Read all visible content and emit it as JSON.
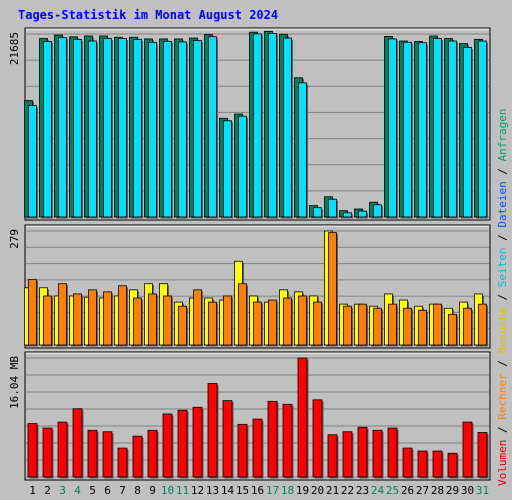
{
  "chart_data": {
    "type": "bar",
    "title": "Tages-Statistik im Monat August 2024",
    "categories": [
      "1",
      "2",
      "3",
      "4",
      "5",
      "6",
      "7",
      "8",
      "9",
      "10",
      "11",
      "12",
      "13",
      "14",
      "15",
      "16",
      "17",
      "18",
      "19",
      "20",
      "21",
      "22",
      "23",
      "24",
      "25",
      "26",
      "27",
      "28",
      "29",
      "30",
      "31"
    ],
    "weekend_days": [
      "3",
      "4",
      "10",
      "11",
      "17",
      "18",
      "24",
      "25",
      "31"
    ],
    "panels": [
      {
        "id": "hits",
        "ylabel_max": "21685",
        "ymax": 21685,
        "series": [
          {
            "name": "Anfragen",
            "color": "#008060",
            "values": [
              13800,
              21150,
              21560,
              21350,
              21450,
              21450,
              21300,
              21300,
              21100,
              21100,
              21100,
              21200,
              21620,
              11700,
              12200,
              21900,
              22000,
              21650,
              16500,
              1350,
              2400,
              750,
              950,
              1750,
              21400,
              20850,
              20800,
              21450,
              21150,
              20550,
              21050
            ]
          },
          {
            "name": "Dateien",
            "color": "#00e0ff",
            "values": [
              13200,
              20800,
              21250,
              21050,
              20850,
              21150,
              21150,
              21050,
              20700,
              20800,
              20750,
              20900,
              21370,
              11400,
              11950,
              21700,
              21750,
              21200,
              15900,
              1100,
              2100,
              500,
              700,
              1450,
              21100,
              20700,
              20650,
              21150,
              20850,
              20100,
              20850
            ]
          }
        ]
      },
      {
        "id": "visits",
        "ylabel_max": "279",
        "ymax": 279,
        "series": [
          {
            "name": "Seiten",
            "color": "#ffff00",
            "values": [
              140,
              140,
              120,
              120,
              117,
              115,
              120,
              135,
              150,
              150,
              105,
              115,
              115,
              110,
              205,
              120,
              105,
              135,
              130,
              120,
              279,
              100,
              100,
              95,
              125,
              110,
              95,
              100,
              90,
              105,
              125
            ]
          },
          {
            "name": "Besuche",
            "color": "#ff8000",
            "values": [
              160,
              120,
              150,
              125,
              135,
              130,
              145,
              115,
              125,
              120,
              95,
              135,
              105,
              120,
              150,
              105,
              110,
              115,
              120,
              105,
              275,
              95,
              100,
              90,
              100,
              90,
              85,
              100,
              75,
              90,
              100
            ]
          }
        ]
      },
      {
        "id": "volume",
        "ylabel_max": "16.04 MB",
        "ymax": 16.04,
        "series": [
          {
            "name": "Volumen",
            "color": "#ff0000",
            "values": [
              7.2,
              6.6,
              7.4,
              9.2,
              6.3,
              6.1,
              3.9,
              5.5,
              6.3,
              8.5,
              9.0,
              9.4,
              12.6,
              10.3,
              7.1,
              7.8,
              10.2,
              9.8,
              16.04,
              10.4,
              5.7,
              6.1,
              6.7,
              6.3,
              6.6,
              3.9,
              3.5,
              3.5,
              3.2,
              7.4,
              6.0
            ]
          }
        ]
      }
    ],
    "legend": {
      "items": [
        {
          "label": "Volumen",
          "color": "#e00000"
        },
        {
          "label": "Rechner",
          "color": "#ff8000"
        },
        {
          "label": "Besuche",
          "color": "#e0c000"
        },
        {
          "label": "Seiten",
          "color": "#00c0e0"
        },
        {
          "label": "Dateien",
          "color": "#0050ff"
        },
        {
          "label": "Anfragen",
          "color": "#00a070"
        }
      ],
      "separator": "/",
      "separator_color": "#000000"
    },
    "colors": {
      "background": "#c0c0c0",
      "title": "#0000ff",
      "weekday_label": "#000000",
      "weekend_label": "#008060",
      "gridline": "#808080"
    },
    "grid": true,
    "legend_position": "right-vertical"
  }
}
